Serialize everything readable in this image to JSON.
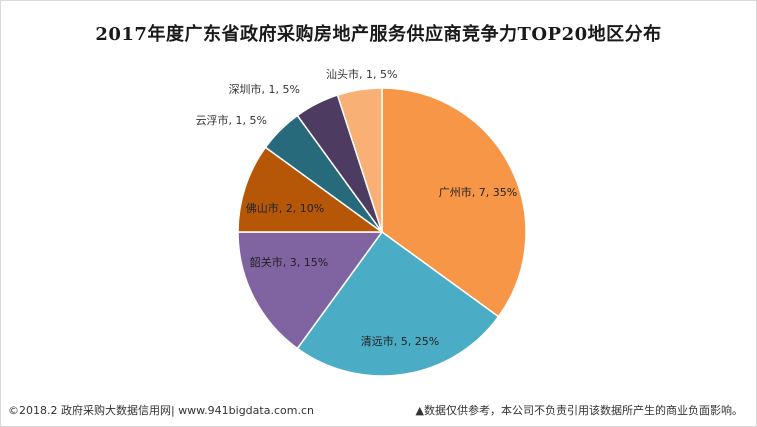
{
  "chart_data": {
    "type": "pie",
    "title": "2017年度广东省政府采购房地产服务供应商竞争力TOP20地区分布",
    "slices": [
      {
        "label": "广州市, 7, 35%",
        "name": "广州市",
        "value": 7,
        "percent": 35,
        "color": "#F79646"
      },
      {
        "label": "清远市, 5, 25%",
        "name": "清远市",
        "value": 5,
        "percent": 25,
        "color": "#4BACC6"
      },
      {
        "label": "韶关市, 3, 15%",
        "name": "韶关市",
        "value": 3,
        "percent": 15,
        "color": "#8064A2"
      },
      {
        "label": "佛山市, 2, 10%",
        "name": "佛山市",
        "value": 2,
        "percent": 10,
        "color": "#B65708"
      },
      {
        "label": "云浮市, 1, 5%",
        "name": "云浮市",
        "value": 1,
        "percent": 5,
        "color": "#276A7C"
      },
      {
        "label": "深圳市, 1, 5%",
        "name": "深圳市",
        "value": 1,
        "percent": 5,
        "color": "#4D3B62"
      },
      {
        "label": "汕头市, 1, 5%",
        "name": "汕头市",
        "value": 1,
        "percent": 5,
        "color": "#F9B074"
      }
    ]
  },
  "footer": {
    "left": "©2018.2 政府采购大数据信用网| www.941bigdata.com.cn",
    "right": "▲数据仅供参考，本公司不负责引用该数据所产生的商业负面影响。"
  }
}
